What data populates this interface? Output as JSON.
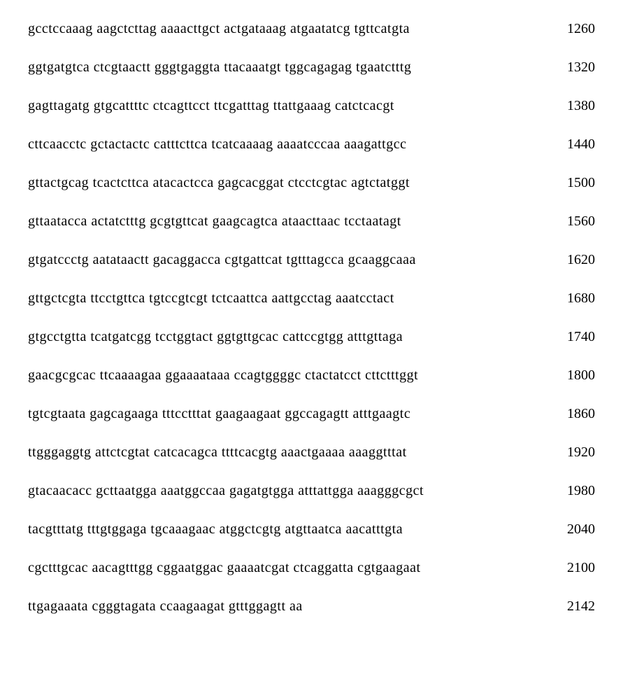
{
  "sequence": {
    "rows": [
      {
        "blocks": [
          "gcctccaaag",
          "aagctcttag",
          "aaaacttgct",
          "actgataaag",
          "atgaatatcg",
          "tgttcatgta"
        ],
        "position": "1260"
      },
      {
        "blocks": [
          "ggtgatgtca",
          "ctcgtaactt",
          "gggtgaggta",
          "ttacaaatgt",
          "tggcagagag",
          "tgaatctttg"
        ],
        "position": "1320"
      },
      {
        "blocks": [
          "gagttagatg",
          "gtgcattttc",
          "ctcagttcct",
          "ttcgatttag",
          "ttattgaaag",
          "catctcacgt"
        ],
        "position": "1380"
      },
      {
        "blocks": [
          "cttcaacctc",
          "gctactactc",
          "catttcttca",
          "tcatcaaaag",
          "aaaatcccaa",
          "aaagattgcc"
        ],
        "position": "1440"
      },
      {
        "blocks": [
          "gttactgcag",
          "tcactcttca",
          "atacactcca",
          "gagcacggat",
          "ctcctcgtac",
          "agtctatggt"
        ],
        "position": "1500"
      },
      {
        "blocks": [
          "gttaatacca",
          "actatctttg",
          "gcgtgttcat",
          "gaagcagtca",
          "ataacttaac",
          "tcctaatagt"
        ],
        "position": "1560"
      },
      {
        "blocks": [
          "gtgatccctg",
          "aatataactt",
          "gacaggacca",
          "cgtgattcat",
          "tgtttagcca",
          "gcaaggcaaa"
        ],
        "position": "1620"
      },
      {
        "blocks": [
          "gttgctcgta",
          "ttcctgttca",
          "tgtccgtcgt",
          "tctcaattca",
          "aattgcctag",
          "aaatcctact"
        ],
        "position": "1680"
      },
      {
        "blocks": [
          "gtgcctgtta",
          "tcatgatcgg",
          "tcctggtact",
          "ggtgttgcac",
          "cattccgtgg",
          "atttgttaga"
        ],
        "position": "1740"
      },
      {
        "blocks": [
          "gaacgcgcac",
          "ttcaaaagaa",
          "ggaaaataaa",
          "ccagtggggc",
          "ctactatcct",
          "cttctttggt"
        ],
        "position": "1800"
      },
      {
        "blocks": [
          "tgtcgtaata",
          "gagcagaaga",
          "tttcctttat",
          "gaagaagaat",
          "ggccagagtt",
          "atttgaagtc"
        ],
        "position": "1860"
      },
      {
        "blocks": [
          "ttgggaggtg",
          "attctcgtat",
          "catcacagca",
          "ttttcacgtg",
          "aaactgaaaa",
          "aaaggtttat"
        ],
        "position": "1920"
      },
      {
        "blocks": [
          "gtacaacacc",
          "gcttaatgga",
          "aaatggccaa",
          "gagatgtgga",
          "atttattgga",
          "aaagggcgct"
        ],
        "position": "1980"
      },
      {
        "blocks": [
          "tacgtttatg",
          "tttgtggaga",
          "tgcaaagaac",
          "atggctcgtg",
          "atgttaatca",
          "aacatttgta"
        ],
        "position": "2040"
      },
      {
        "blocks": [
          "cgctttgcac",
          "aacagtttgg",
          "cggaatggac",
          "gaaaatcgat",
          "ctcaggatta",
          "cgtgaagaat"
        ],
        "position": "2100"
      },
      {
        "blocks": [
          "ttgagaaata",
          "cgggtagata",
          "ccaagaagat",
          "gtttggagtt",
          "aa"
        ],
        "position": "2142"
      }
    ],
    "styling": {
      "font_family": "Times New Roman",
      "font_size": 20,
      "text_color": "#000000",
      "background_color": "#ffffff",
      "row_gap": 32,
      "block_separator": " "
    }
  }
}
